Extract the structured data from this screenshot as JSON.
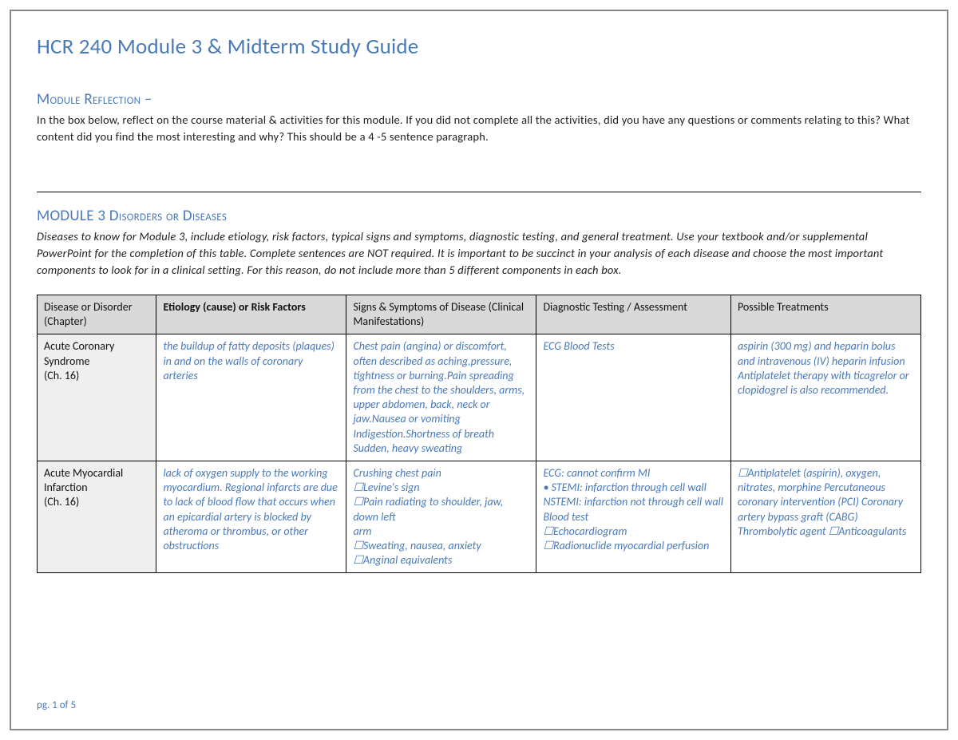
{
  "doc": {
    "title": "HCR 240 Module 3 & Midterm Study Guide"
  },
  "reflection": {
    "heading": "Module Reflection –",
    "body": "In the box below, reflect on the course material & activities for this module.  If you did not complete all the activities, did you have any questions or comments relating to this?  What content did you find the most interesting and why?  This should be a 4 -5 sentence paragraph."
  },
  "disorders": {
    "heading": "MODULE 3 Disorders or Diseases",
    "body": "Diseases to know for Module 3, include etiology, risk factors, typical signs and symptoms, diagnostic testing, and general treatment.  Use your textbook and/or supplemental PowerPoint for the completion of this table.  Complete sentences are NOT required.  It is important to be succinct in your analysis of each disease and choose the most important components to look for in a clinical setting. For this reason, do not include more than 5 different components in each box."
  },
  "table": {
    "headers": {
      "col1": "Disease or Disorder (Chapter)",
      "col2": "Etiology (cause) or Risk Factors",
      "col3": "Signs & Symptoms of Disease (Clinical Manifestations)",
      "col4": "Diagnostic Testing / Assessment",
      "col5": "Possible Treatments"
    },
    "rows": [
      {
        "label": "Acute Coronary Syndrome\n(Ch. 16)",
        "etiology": "the buildup of fatty deposits (plaques) in and on the walls of coronary arteries",
        "signs": "Chest pain (angina) or discomfort, often described as aching,pressure, tightness or burning.Pain spreading from the chest to the shoulders, arms, upper abdomen, back, neck or jaw.Nausea or vomiting Indigestion.Shortness of breath Sudden, heavy sweating",
        "diagnostic": "ECG Blood Tests",
        "treatment": "aspirin (300 mg) and heparin bolus and intravenous (IV) heparin infusion Antiplatelet therapy with ticagrelor or clopidogrel is also recommended."
      },
      {
        "label": "Acute Myocardial Infarction\n(Ch. 16)",
        "etiology": "lack of oxygen supply to the working myocardium. Regional infarcts are due to lack of blood flow that occurs when an epicardial artery is blocked by atheroma or thrombus, or other obstructions",
        "signs": "Crushing chest pain\n☐Levine's sign\n☐Pain radiating to shoulder, jaw, down left\narm\n☐Sweating, nausea, anxiety\n☐Anginal equivalents",
        "diagnostic": "ECG: cannot confirm MI\n• STEMI: infarction through cell wall NSTEMI: infarction not through cell wall\nBlood test\n☐Echocardiogram\n☐Radionuclide myocardial perfusion",
        "treatment": "☐Antiplatelet (aspirin), oxygen, nitrates, morphine Percutaneous coronary intervention (PCI) Coronary artery bypass graft (CABG) Thrombolytic agent ☐Anticoagulants"
      }
    ]
  },
  "footer": {
    "page_label": "pg. 1 of 5"
  },
  "colors": {
    "accent": "#4a7ab8",
    "header_bg": "#d9d9d9",
    "rowlabel_bg": "#efefef",
    "border": "#888888",
    "text": "#222222"
  }
}
